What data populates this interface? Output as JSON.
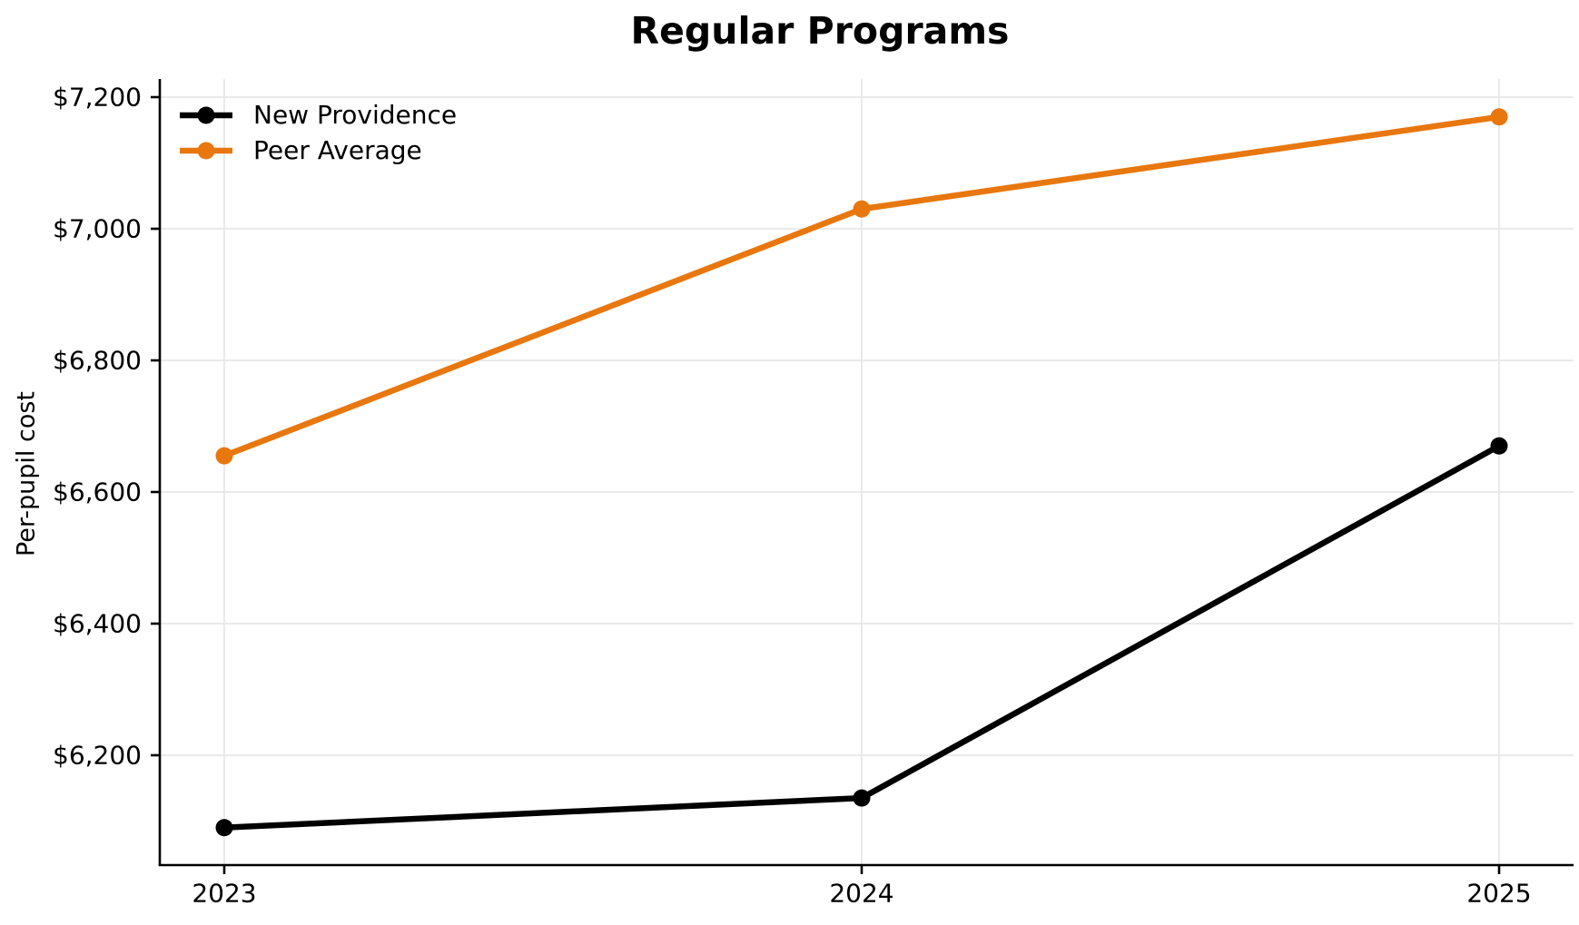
{
  "chart_data": {
    "type": "line",
    "title": "Regular Programs",
    "xlabel": "",
    "ylabel": "Per-pupil cost",
    "categories": [
      "2023",
      "2024",
      "2025"
    ],
    "series": [
      {
        "name": "New Providence",
        "color": "#000000",
        "values": [
          6090,
          6135,
          6670
        ]
      },
      {
        "name": "Peer Average",
        "color": "#E8770E",
        "values": [
          6655,
          7030,
          7170
        ]
      }
    ],
    "yticks": [
      6200,
      6400,
      6600,
      6800,
      7000,
      7200
    ],
    "ytick_prefix": "$",
    "ylim": [
      6033,
      7228
    ],
    "grid": true,
    "legend_position": "upper left",
    "grid_color": "#E7E7E7",
    "axis_color": "#000000"
  }
}
